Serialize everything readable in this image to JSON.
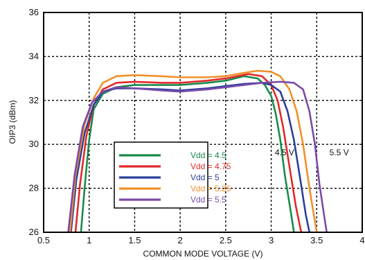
{
  "chart_data": {
    "type": "line",
    "title": "",
    "xlabel": "COMMON MODE VOLTAGE (V)",
    "ylabel": "OIP3  (dBm)",
    "xlim": [
      0.5,
      4
    ],
    "ylim": [
      26,
      36
    ],
    "xticks": [
      0.5,
      1,
      1.5,
      2,
      2.5,
      3,
      3.5,
      4
    ],
    "xtick_labels": [
      "0.5",
      "1",
      "1.5",
      "2",
      "2.5",
      "3",
      "3.5",
      "4"
    ],
    "yticks": [
      26,
      28,
      30,
      32,
      34,
      36
    ],
    "ytick_labels": [
      "26",
      "28",
      "30",
      "32",
      "34",
      "36"
    ],
    "grid": true,
    "grid_style": "dotted",
    "legend_position": "lower-left-center",
    "annotations": [
      {
        "text": "4.5 V",
        "x": 3.04,
        "y": 29.5
      },
      {
        "text": "5.5 V",
        "x": 3.64,
        "y": 29.5
      }
    ],
    "series": [
      {
        "name": "Vdd = 4.5",
        "color": "#1a8a4a",
        "points": [
          [
            0.91,
            26
          ],
          [
            0.95,
            28
          ],
          [
            1.0,
            30.2
          ],
          [
            1.05,
            31.6
          ],
          [
            1.15,
            32.3
          ],
          [
            1.3,
            32.6
          ],
          [
            1.5,
            32.7
          ],
          [
            1.8,
            32.7
          ],
          [
            2.0,
            32.7
          ],
          [
            2.3,
            32.8
          ],
          [
            2.5,
            32.9
          ],
          [
            2.7,
            33.1
          ],
          [
            2.85,
            33.0
          ],
          [
            2.93,
            32.7
          ],
          [
            3.0,
            32.2
          ],
          [
            3.05,
            31.4
          ],
          [
            3.1,
            30.2
          ],
          [
            3.15,
            28.6
          ],
          [
            3.22,
            26.8
          ],
          [
            3.25,
            26
          ]
        ]
      },
      {
        "name": "Vdd = 4.75",
        "color": "#e02a2a",
        "points": [
          [
            0.85,
            26
          ],
          [
            0.9,
            28.2
          ],
          [
            0.97,
            30.4
          ],
          [
            1.05,
            31.8
          ],
          [
            1.15,
            32.5
          ],
          [
            1.3,
            32.8
          ],
          [
            1.5,
            32.85
          ],
          [
            1.8,
            32.8
          ],
          [
            2.0,
            32.8
          ],
          [
            2.3,
            32.9
          ],
          [
            2.5,
            33.0
          ],
          [
            2.75,
            33.2
          ],
          [
            2.9,
            33.1
          ],
          [
            3.0,
            32.7
          ],
          [
            3.07,
            32.0
          ],
          [
            3.13,
            30.8
          ],
          [
            3.2,
            29.0
          ],
          [
            3.27,
            27.2
          ],
          [
            3.33,
            26
          ]
        ]
      },
      {
        "name": "Vdd = 5",
        "color": "#2a3f9a",
        "points": [
          [
            0.8,
            26
          ],
          [
            0.86,
            28.4
          ],
          [
            0.95,
            30.5
          ],
          [
            1.05,
            31.8
          ],
          [
            1.15,
            32.4
          ],
          [
            1.3,
            32.55
          ],
          [
            1.5,
            32.55
          ],
          [
            1.8,
            32.5
          ],
          [
            2.0,
            32.45
          ],
          [
            2.3,
            32.55
          ],
          [
            2.5,
            32.65
          ],
          [
            2.7,
            32.75
          ],
          [
            2.9,
            32.8
          ],
          [
            3.0,
            32.7
          ],
          [
            3.1,
            32.4
          ],
          [
            3.18,
            31.5
          ],
          [
            3.25,
            30.2
          ],
          [
            3.32,
            28.4
          ],
          [
            3.38,
            26.8
          ],
          [
            3.42,
            26
          ]
        ]
      },
      {
        "name": "Vdd = 5.25",
        "color": "#f0902a",
        "points": [
          [
            0.79,
            26
          ],
          [
            0.85,
            28.6
          ],
          [
            0.95,
            30.9
          ],
          [
            1.05,
            32.1
          ],
          [
            1.15,
            32.8
          ],
          [
            1.3,
            33.1
          ],
          [
            1.5,
            33.15
          ],
          [
            1.8,
            33.1
          ],
          [
            2.0,
            33.05
          ],
          [
            2.3,
            33.05
          ],
          [
            2.5,
            33.1
          ],
          [
            2.7,
            33.25
          ],
          [
            2.85,
            33.35
          ],
          [
            3.0,
            33.3
          ],
          [
            3.1,
            33.1
          ],
          [
            3.2,
            32.5
          ],
          [
            3.28,
            31.5
          ],
          [
            3.35,
            30.0
          ],
          [
            3.42,
            28.0
          ],
          [
            3.48,
            26.5
          ],
          [
            3.5,
            26
          ]
        ]
      },
      {
        "name": "Vdd = 5.5",
        "color": "#7a4aa8",
        "points": [
          [
            0.77,
            26
          ],
          [
            0.84,
            28.6
          ],
          [
            0.93,
            30.8
          ],
          [
            1.03,
            31.9
          ],
          [
            1.15,
            32.4
          ],
          [
            1.3,
            32.6
          ],
          [
            1.5,
            32.55
          ],
          [
            1.8,
            32.45
          ],
          [
            2.0,
            32.4
          ],
          [
            2.3,
            32.5
          ],
          [
            2.5,
            32.6
          ],
          [
            2.7,
            32.7
          ],
          [
            2.9,
            32.8
          ],
          [
            3.1,
            32.85
          ],
          [
            3.25,
            32.8
          ],
          [
            3.35,
            32.5
          ],
          [
            3.42,
            31.5
          ],
          [
            3.48,
            30.0
          ],
          [
            3.53,
            28.2
          ],
          [
            3.58,
            26.8
          ],
          [
            3.61,
            26
          ]
        ]
      }
    ]
  }
}
